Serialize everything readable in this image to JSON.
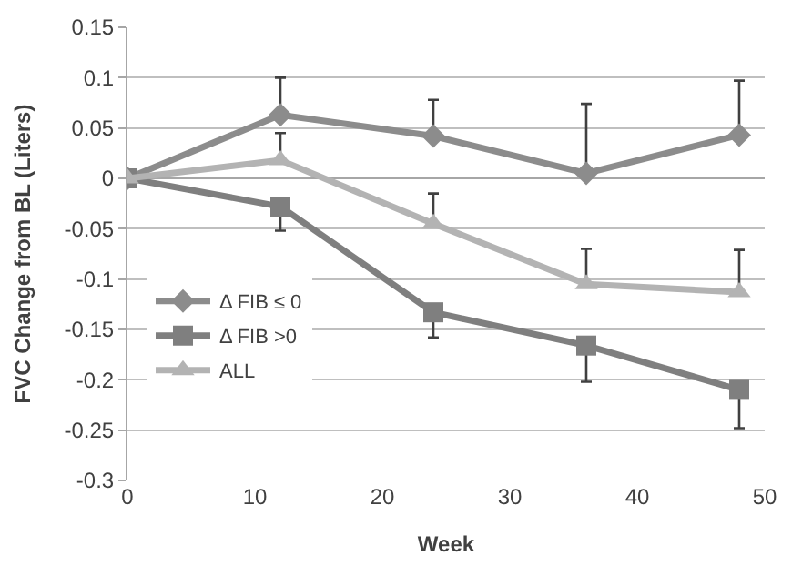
{
  "chart_data": {
    "type": "line",
    "xlabel": "Week",
    "ylabel": "FVC Change from BL (Liters)",
    "x": [
      0,
      12,
      24,
      36,
      48
    ],
    "series": [
      {
        "name": "Δ FIB ≤ 0",
        "color": "#8c8c8c",
        "marker": "diamond",
        "values": [
          0,
          0.063,
          0.042,
          0.005,
          0.043
        ],
        "errors": [
          null,
          [
            0.063,
            0.1
          ],
          [
            0.042,
            0.078
          ],
          [
            0.005,
            0.074
          ],
          [
            0.043,
            0.097
          ]
        ]
      },
      {
        "name": "Δ FIB >0",
        "color": "#7f7f7f",
        "marker": "square",
        "values": [
          0,
          -0.028,
          -0.133,
          -0.166,
          -0.21
        ],
        "errors": [
          null,
          [
            -0.052,
            -0.028
          ],
          [
            -0.158,
            -0.133
          ],
          [
            -0.202,
            -0.166
          ],
          [
            -0.248,
            -0.21
          ]
        ]
      },
      {
        "name": "ALL",
        "color": "#b3b3b3",
        "marker": "triangle",
        "values": [
          0,
          0.018,
          -0.045,
          -0.105,
          -0.113
        ],
        "errors": [
          null,
          [
            0.018,
            0.045
          ],
          [
            -0.045,
            -0.015
          ],
          [
            -0.105,
            -0.07
          ],
          [
            -0.113,
            -0.071
          ]
        ]
      }
    ],
    "xlim": [
      0,
      50
    ],
    "xticks": [
      0,
      10,
      20,
      30,
      40,
      50
    ],
    "ylim": [
      -0.3,
      0.15
    ],
    "yticks": [
      -0.3,
      -0.25,
      -0.2,
      -0.15,
      -0.1,
      -0.05,
      0,
      0.05,
      0.1,
      0.15
    ],
    "grid": "y",
    "legend": "left",
    "line_style": "solid"
  }
}
